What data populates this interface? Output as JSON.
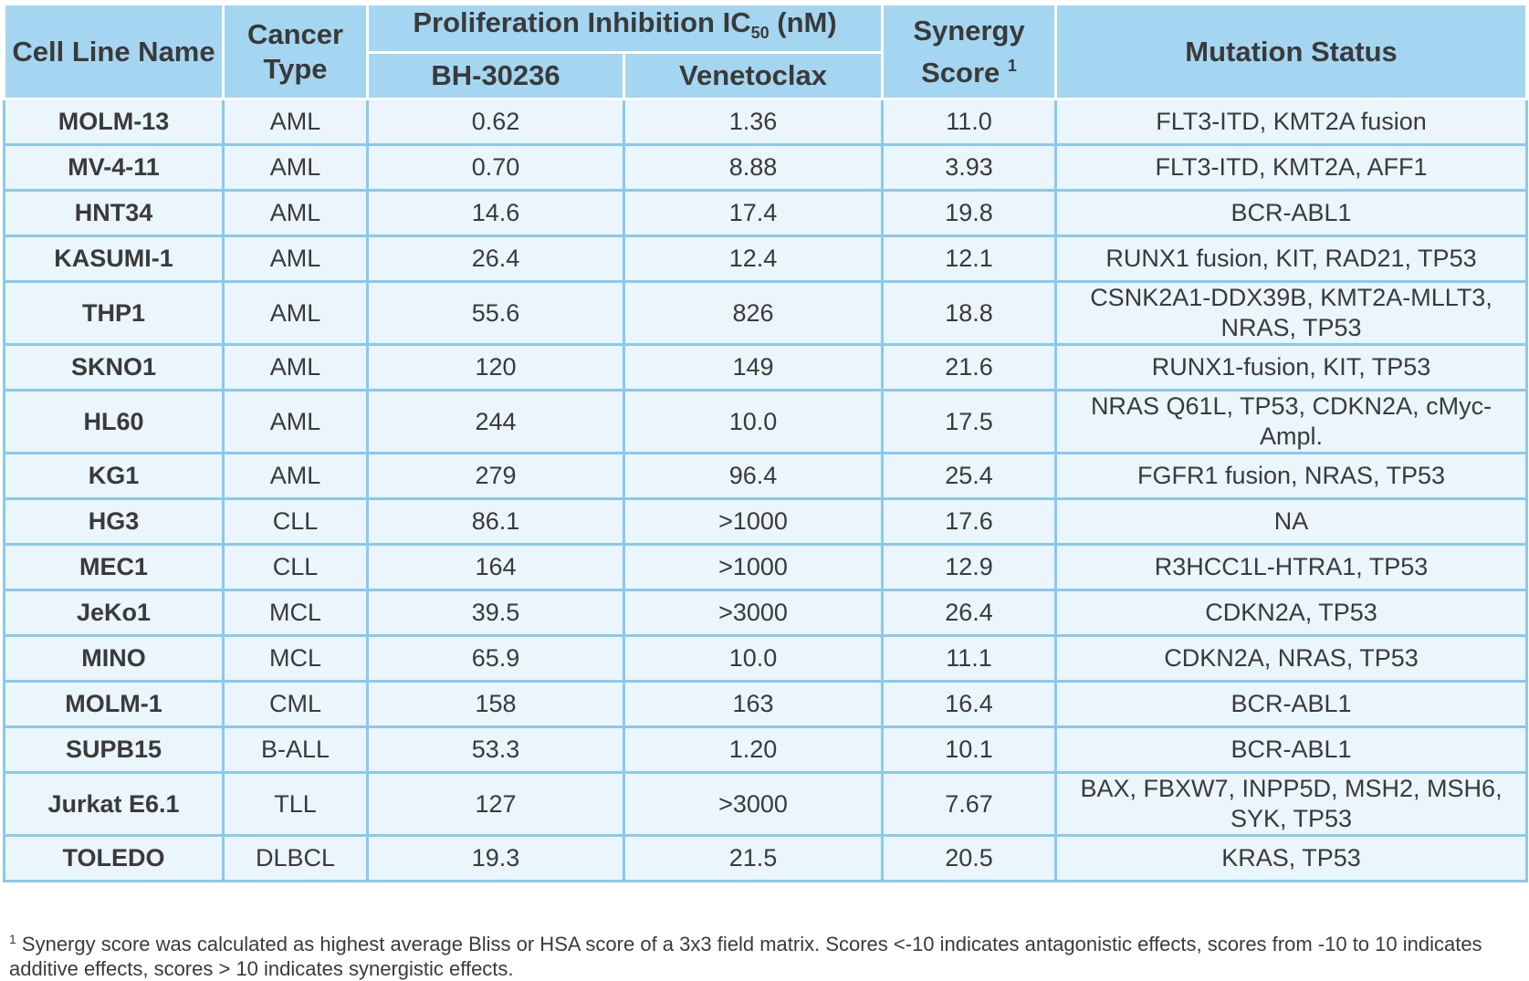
{
  "header": {
    "cell_line": "Cell Line Name",
    "cancer_type": "Cancer Type",
    "group_prefix": "Proliferation Inhibition IC",
    "group_sub": "50",
    "group_suffix": " (nM)",
    "bh": "BH-30236",
    "venetoclax": "Venetoclax",
    "synergy": "Synergy Score",
    "synergy_sup": "1",
    "mutation": "Mutation Status"
  },
  "rows": [
    {
      "name": "MOLM-13",
      "type": "AML",
      "bh": "0.62",
      "ven": "1.36",
      "syn": "11.0",
      "mut": "FLT3-ITD, KMT2A fusion"
    },
    {
      "name": "MV-4-11",
      "type": "AML",
      "bh": "0.70",
      "ven": "8.88",
      "syn": "3.93",
      "mut": "FLT3-ITD, KMT2A, AFF1"
    },
    {
      "name": "HNT34",
      "type": "AML",
      "bh": "14.6",
      "ven": "17.4",
      "syn": "19.8",
      "mut": "BCR-ABL1"
    },
    {
      "name": "KASUMI-1",
      "type": "AML",
      "bh": "26.4",
      "ven": "12.4",
      "syn": "12.1",
      "mut": "RUNX1 fusion, KIT, RAD21, TP53"
    },
    {
      "name": "THP1",
      "type": "AML",
      "bh": "55.6",
      "ven": "826",
      "syn": "18.8",
      "mut": "CSNK2A1-DDX39B, KMT2A-MLLT3, NRAS, TP53"
    },
    {
      "name": "SKNO1",
      "type": "AML",
      "bh": "120",
      "ven": "149",
      "syn": "21.6",
      "mut": "RUNX1-fusion, KIT, TP53"
    },
    {
      "name": "HL60",
      "type": "AML",
      "bh": "244",
      "ven": "10.0",
      "syn": "17.5",
      "mut": "NRAS Q61L, TP53, CDKN2A, cMyc-Ampl."
    },
    {
      "name": "KG1",
      "type": "AML",
      "bh": "279",
      "ven": "96.4",
      "syn": "25.4",
      "mut": "FGFR1 fusion, NRAS, TP53"
    },
    {
      "name": "HG3",
      "type": "CLL",
      "bh": "86.1",
      "ven": ">1000",
      "syn": "17.6",
      "mut": "NA"
    },
    {
      "name": "MEC1",
      "type": "CLL",
      "bh": "164",
      "ven": ">1000",
      "syn": "12.9",
      "mut": "R3HCC1L-HTRA1, TP53"
    },
    {
      "name": "JeKo1",
      "type": "MCL",
      "bh": "39.5",
      "ven": ">3000",
      "syn": "26.4",
      "mut": "CDKN2A, TP53"
    },
    {
      "name": "MINO",
      "type": "MCL",
      "bh": "65.9",
      "ven": "10.0",
      "syn": "11.1",
      "mut": "CDKN2A, NRAS, TP53"
    },
    {
      "name": "MOLM-1",
      "type": "CML",
      "bh": "158",
      "ven": "163",
      "syn": "16.4",
      "mut": "BCR-ABL1"
    },
    {
      "name": "SUPB15",
      "type": "B-ALL",
      "bh": "53.3",
      "ven": "1.20",
      "syn": "10.1",
      "mut": "BCR-ABL1"
    },
    {
      "name": "Jurkat E6.1",
      "type": "TLL",
      "bh": "127",
      "ven": ">3000",
      "syn": "7.67",
      "mut": "BAX, FBXW7, INPP5D, MSH2, MSH6, SYK, TP53"
    },
    {
      "name": "TOLEDO",
      "type": "DLBCL",
      "bh": "19.3",
      "ven": "21.5",
      "syn": "20.5",
      "mut": "KRAS, TP53"
    }
  ],
  "footnote": {
    "marker": "1",
    "text": " Synergy score was calculated as highest average Bliss or HSA score of a 3x3 field matrix. Scores <-10 indicates antagonistic effects, scores from -10 to 10 indicates additive effects, scores > 10 indicates synergistic effects."
  }
}
